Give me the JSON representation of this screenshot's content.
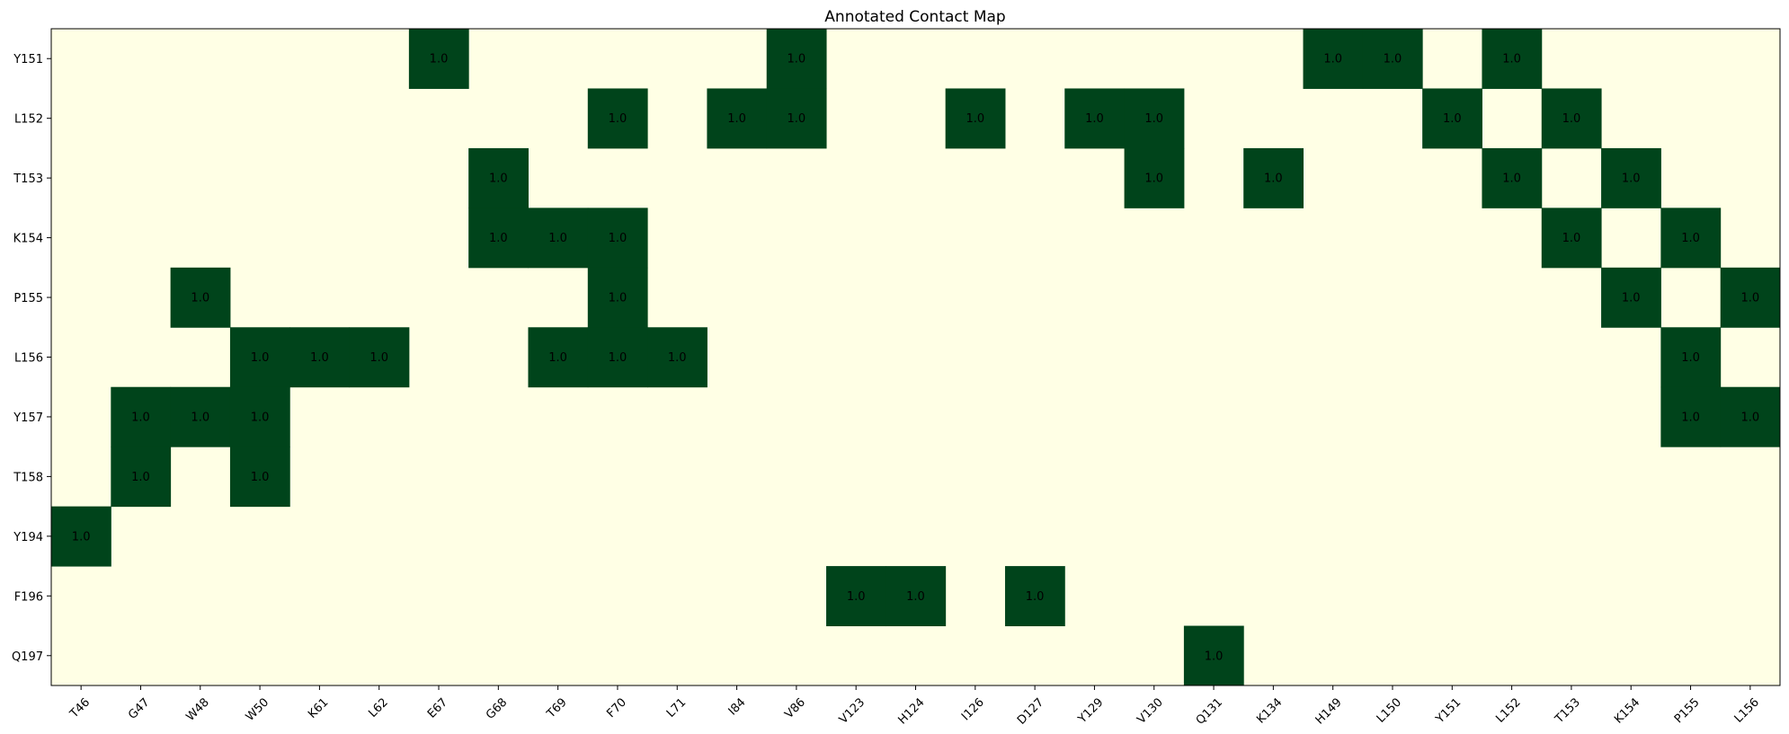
{
  "chart_data": {
    "type": "heatmap",
    "title": "Annotated Contact Map",
    "xlabel": "",
    "ylabel": "",
    "columns": [
      "T46",
      "G47",
      "W48",
      "W50",
      "K61",
      "L62",
      "E67",
      "G68",
      "T69",
      "F70",
      "L71",
      "I84",
      "V86",
      "V123",
      "H124",
      "I126",
      "D127",
      "Y129",
      "V130",
      "Q131",
      "K134",
      "H149",
      "L150",
      "Y151",
      "L152",
      "T153",
      "K154",
      "P155",
      "L156"
    ],
    "rows": [
      "Y151",
      "L152",
      "T153",
      "K154",
      "P155",
      "L156",
      "Y157",
      "T158",
      "Y194",
      "F196",
      "Q197"
    ],
    "contacts": [
      {
        "row": "Y151",
        "cols": [
          "E67",
          "V86",
          "H149",
          "L150",
          "L152"
        ]
      },
      {
        "row": "L152",
        "cols": [
          "F70",
          "I84",
          "V86",
          "I126",
          "Y129",
          "V130",
          "Y151",
          "T153"
        ]
      },
      {
        "row": "T153",
        "cols": [
          "G68",
          "V130",
          "K134",
          "L152",
          "K154"
        ]
      },
      {
        "row": "K154",
        "cols": [
          "G68",
          "T69",
          "F70",
          "T153",
          "P155"
        ]
      },
      {
        "row": "P155",
        "cols": [
          "W48",
          "F70",
          "K154",
          "L156"
        ]
      },
      {
        "row": "L156",
        "cols": [
          "W50",
          "K61",
          "L62",
          "T69",
          "F70",
          "L71",
          "P155"
        ]
      },
      {
        "row": "Y157",
        "cols": [
          "G47",
          "W48",
          "W50",
          "P155",
          "L156"
        ]
      },
      {
        "row": "T158",
        "cols": [
          "G47",
          "W50"
        ]
      },
      {
        "row": "Y194",
        "cols": [
          "T46"
        ]
      },
      {
        "row": "F196",
        "cols": [
          "V123",
          "H124",
          "D127"
        ]
      },
      {
        "row": "Q197",
        "cols": [
          "Q131"
        ]
      }
    ],
    "contact_value": 1.0,
    "cell_label": "1.0",
    "colors": {
      "contact": "#00441b",
      "background": "#ffffe5",
      "axis": "#000000"
    },
    "grid": false,
    "legend": "none"
  }
}
